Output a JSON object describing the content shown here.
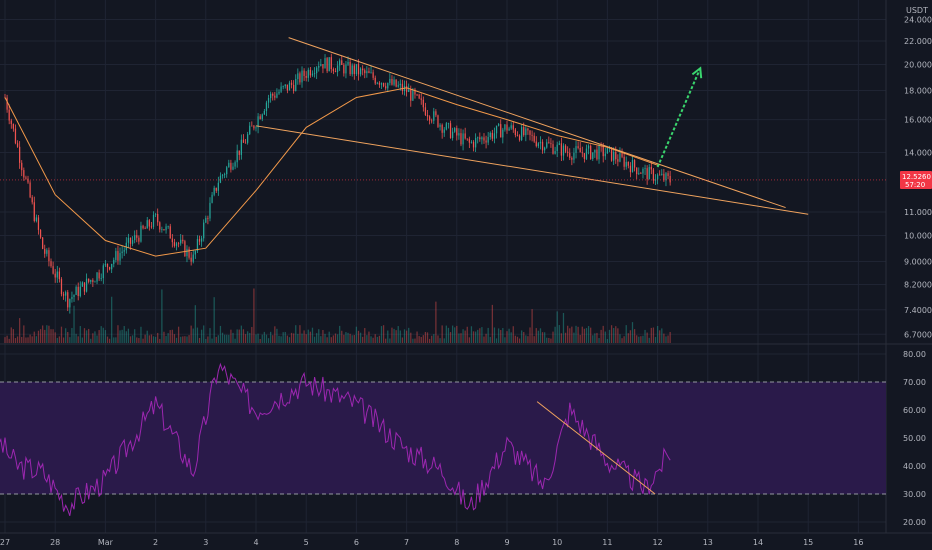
{
  "chart_data": [
    {
      "type": "candlestick",
      "title": "",
      "currency_label": "USDT",
      "y_scale": "log",
      "ylim": [
        6.5,
        25
      ],
      "yticks": [
        {
          "value": 24,
          "label": "24.0000"
        },
        {
          "value": 22,
          "label": "22.0000"
        },
        {
          "value": 20,
          "label": "20.0000"
        },
        {
          "value": 18,
          "label": "18.0000"
        },
        {
          "value": 16,
          "label": "16.0000"
        },
        {
          "value": 14,
          "label": "14.0000"
        },
        {
          "value": 11,
          "label": "11.0000"
        },
        {
          "value": 10,
          "label": "10.0000"
        },
        {
          "value": 9,
          "label": "9.0000"
        },
        {
          "value": 8.2,
          "label": "8.2000"
        },
        {
          "value": 7.4,
          "label": "7.4000"
        },
        {
          "value": 6.7,
          "label": "6.7000"
        }
      ],
      "x_ticks": [
        "27",
        "28",
        "Mar",
        "2",
        "3",
        "4",
        "5",
        "6",
        "7",
        "8",
        "9",
        "10",
        "11",
        "12",
        "13",
        "14",
        "15",
        "16"
      ],
      "price_marker": {
        "value": 12.526,
        "label": "12.5260",
        "countdown": "57:20",
        "color": "#f23645"
      },
      "colors": {
        "up": "#26a69a",
        "down": "#ef5350",
        "ma": "#f2994a",
        "trendline": "#f0a35e",
        "arrow": "#3ad66e"
      },
      "key_points": [
        {
          "x": "27",
          "close": 17.5
        },
        {
          "x": "28",
          "close": 9.5
        },
        {
          "x": "28",
          "close": 7.7
        },
        {
          "x": "Mar",
          "close": 8.8
        },
        {
          "x": "2",
          "close": 10.7
        },
        {
          "x": "3",
          "close": 9.1
        },
        {
          "x": "3",
          "close": 12.5
        },
        {
          "x": "4",
          "close": 14.5
        },
        {
          "x": "4",
          "close": 17.5
        },
        {
          "x": "5",
          "close": 18.5
        },
        {
          "x": "5",
          "close": 20.2
        },
        {
          "x": "6",
          "close": 19.5
        },
        {
          "x": "7",
          "close": 18.0
        },
        {
          "x": "8",
          "close": 15.5
        },
        {
          "x": "8",
          "close": 14.5
        },
        {
          "x": "9",
          "close": 15.5
        },
        {
          "x": "10",
          "close": 14.5
        },
        {
          "x": "10",
          "close": 14.0
        },
        {
          "x": "11",
          "close": 14.0
        },
        {
          "x": "12",
          "close": 12.9
        },
        {
          "x": "12",
          "close": 12.5
        }
      ],
      "moving_average": [
        {
          "x": "27",
          "value": 17.5
        },
        {
          "x": "28",
          "value": 11.8
        },
        {
          "x": "Mar",
          "value": 9.8
        },
        {
          "x": "2",
          "value": 9.2
        },
        {
          "x": "3",
          "value": 9.5
        },
        {
          "x": "4",
          "value": 12.0
        },
        {
          "x": "5",
          "value": 15.5
        },
        {
          "x": "6",
          "value": 17.5
        },
        {
          "x": "7",
          "value": 18.2
        },
        {
          "x": "8",
          "value": 17.0
        },
        {
          "x": "9",
          "value": 16.0
        },
        {
          "x": "10",
          "value": 15.0
        },
        {
          "x": "11",
          "value": 14.3
        },
        {
          "x": "12",
          "value": 13.3
        }
      ],
      "trendlines": [
        {
          "from": {
            "x": 5.65,
            "y": 22.3
          },
          "to": {
            "x": 15.55,
            "y": 11.2
          }
        },
        {
          "from": {
            "x": 5.0,
            "y": 15.6
          },
          "to": {
            "x": 16.0,
            "y": 10.9
          }
        }
      ],
      "arrow": {
        "from": {
          "x": 13.0,
          "y": 13.2
        },
        "to": {
          "x": 13.85,
          "y": 19.7
        }
      }
    },
    {
      "type": "line",
      "title": "",
      "ylim": [
        15,
        82
      ],
      "yticks": [
        {
          "value": 80,
          "label": "80.00"
        },
        {
          "value": 70,
          "label": "70.00"
        },
        {
          "value": 60,
          "label": "60.00"
        },
        {
          "value": 50,
          "label": "50.00"
        },
        {
          "value": 40,
          "label": "40.00"
        },
        {
          "value": 30,
          "label": "30.00"
        },
        {
          "value": 20,
          "label": "20.00"
        }
      ],
      "bands": {
        "upper": 70,
        "lower": 30,
        "fill": "#2a1a4a"
      },
      "line_color": "#9c27b0",
      "key_points": [
        {
          "x": "27",
          "value": 52
        },
        {
          "x": "27",
          "value": 40
        },
        {
          "x": "28",
          "value": 38
        },
        {
          "x": "28",
          "value": 26
        },
        {
          "x": "Mar",
          "value": 35
        },
        {
          "x": "2",
          "value": 62
        },
        {
          "x": "3",
          "value": 38
        },
        {
          "x": "3",
          "value": 76
        },
        {
          "x": "4",
          "value": 60
        },
        {
          "x": "5",
          "value": 70
        },
        {
          "x": "6",
          "value": 62
        },
        {
          "x": "7",
          "value": 46
        },
        {
          "x": "8",
          "value": 38
        },
        {
          "x": "8",
          "value": 25
        },
        {
          "x": "9",
          "value": 48
        },
        {
          "x": "10",
          "value": 33
        },
        {
          "x": "10",
          "value": 60
        },
        {
          "x": "11",
          "value": 42
        },
        {
          "x": "12",
          "value": 32
        },
        {
          "x": "12",
          "value": 45
        }
      ],
      "trendline": {
        "from": {
          "x": 10.6,
          "y": 63
        },
        "to": {
          "x": 12.95,
          "y": 30
        }
      }
    }
  ]
}
